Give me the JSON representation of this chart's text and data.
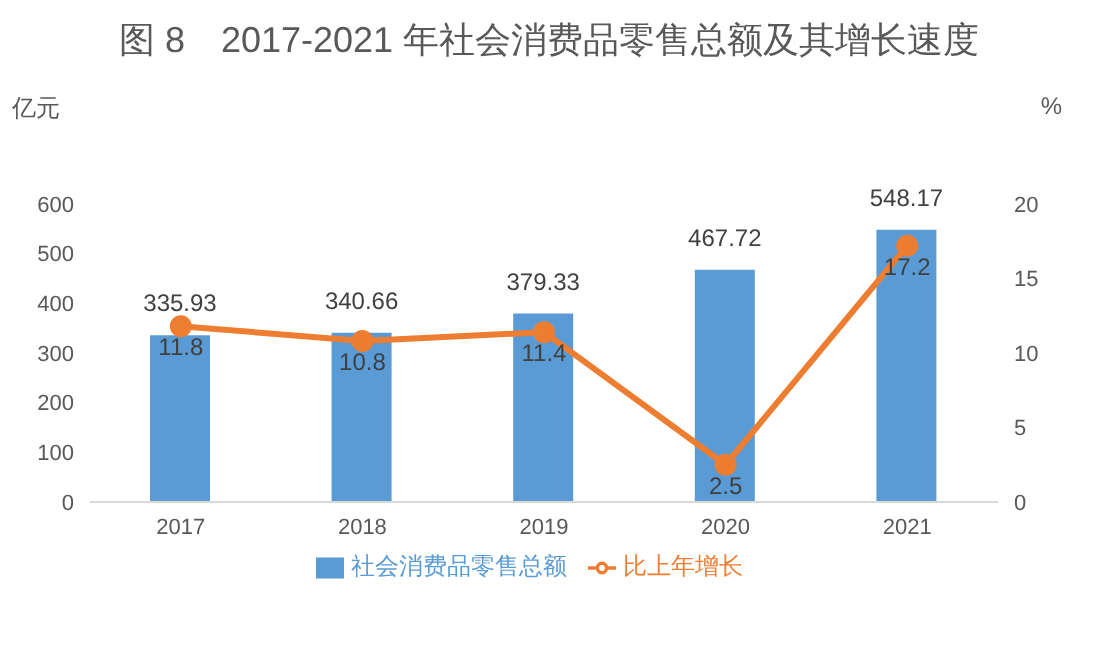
{
  "chart_data": {
    "type": "bar",
    "title": "图 8　2017-2021 年社会消费品零售总额及其增长速度",
    "ylabel": "亿元",
    "y2label": "%",
    "categories": [
      "2017",
      "2018",
      "2019",
      "2020",
      "2021"
    ],
    "series": [
      {
        "name": "社会消费品零售总额",
        "color": "#5b9bd5",
        "values": [
          335.93,
          340.66,
          379.33,
          467.72,
          548.17
        ]
      },
      {
        "name": "比上年增长",
        "type": "line",
        "axis": "y2",
        "color": "#ed7d31",
        "values": [
          11.8,
          10.8,
          11.4,
          2.5,
          17.2
        ]
      }
    ],
    "ylim": [
      0,
      600
    ],
    "yticks": [
      0,
      100,
      200,
      300,
      400,
      500,
      600
    ],
    "y2lim": [
      0,
      20
    ],
    "y2ticks": [
      0,
      5,
      10,
      15,
      20
    ],
    "data_labels": true,
    "grid": false,
    "legend": "bottom",
    "marker": "circle",
    "line_style": "solid"
  }
}
